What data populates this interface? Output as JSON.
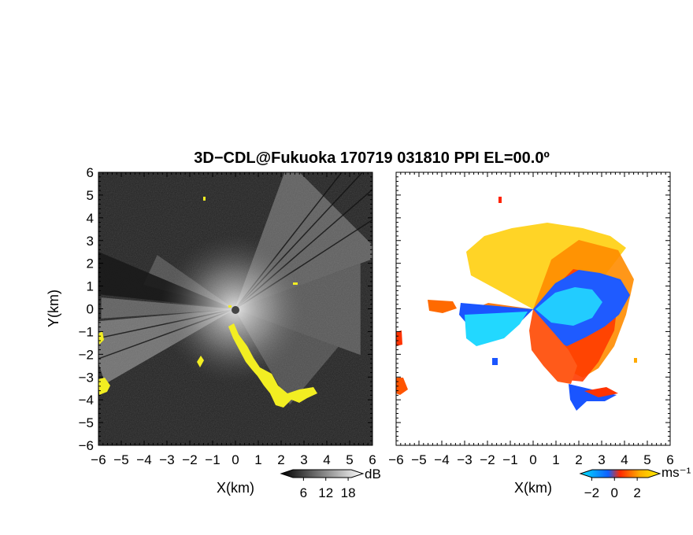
{
  "chart_data": {
    "title": "3D−CDL@Fukuoka 170719 031810 PPI EL=00.0º",
    "panels": [
      {
        "type": "heatmap",
        "quantity": "reflectivity / SNR",
        "xlabel": "X(km)",
        "ylabel": "Y(km)",
        "xlim": [
          -6,
          6
        ],
        "ylim": [
          -6,
          6
        ],
        "x_ticks": [
          "−6",
          "−5",
          "−4",
          "−3",
          "−2",
          "−1",
          "0",
          "1",
          "2",
          "3",
          "4",
          "5",
          "6"
        ],
        "y_ticks": [
          "6",
          "5",
          "4",
          "3",
          "2",
          "1",
          "0",
          "−1",
          "−2",
          "−3",
          "−4",
          "−5",
          "−6"
        ],
        "background_color": "#222222",
        "highlight_color": "#f2ee22",
        "colorbar": {
          "unit": "dB",
          "tick_labels": [
            "6",
            "12",
            "18"
          ],
          "tick_values": [
            6,
            12,
            18
          ],
          "range": [
            0,
            22
          ],
          "colors": [
            "#000000",
            "#ffffff"
          ]
        }
      },
      {
        "type": "heatmap",
        "quantity": "Doppler velocity",
        "xlabel": "X(km)",
        "ylabel": "",
        "xlim": [
          -6,
          6
        ],
        "ylim": [
          -6,
          6
        ],
        "x_ticks": [
          "−6",
          "−5",
          "−4",
          "−3",
          "−2",
          "−1",
          "0",
          "1",
          "2",
          "3",
          "4",
          "5",
          "6"
        ],
        "colorbar": {
          "unit": "ms⁻¹",
          "tick_labels": [
            "−2",
            "0",
            "2"
          ],
          "tick_values": [
            -2,
            0,
            2
          ],
          "range": [
            -3,
            4
          ],
          "colors": [
            "#00e5ff",
            "#1060ff",
            "#ff2a00",
            "#ffb000",
            "#fff000"
          ]
        }
      }
    ]
  }
}
